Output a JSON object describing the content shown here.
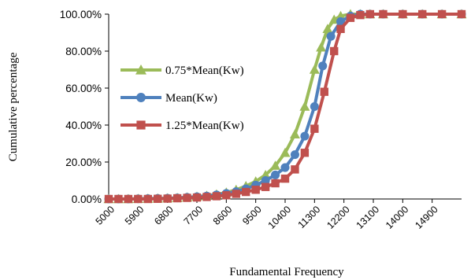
{
  "chart_data": {
    "type": "line",
    "title": "",
    "xlabel": "Fundamental Frequency",
    "ylabel": "Cumulative percentage",
    "xlim": [
      5000,
      15800
    ],
    "ylim": [
      0,
      1
    ],
    "x_ticks": [
      "5000",
      "5900",
      "6800",
      "7700",
      "8600",
      "9500",
      "10400",
      "11300",
      "12200",
      "13100",
      "14000",
      "14900"
    ],
    "y_ticks": [
      "0.00%",
      "20.00%",
      "40.00%",
      "60.00%",
      "80.00%",
      "100.00%"
    ],
    "grid": false,
    "legend_position": "left-inside",
    "series": [
      {
        "name": "0.75*Mean(Kw)",
        "color": "#9BBB59",
        "marker": "triangle",
        "points": [
          [
            5000,
            0.0
          ],
          [
            5300,
            0.0
          ],
          [
            5600,
            0.0
          ],
          [
            5900,
            0.001
          ],
          [
            6200,
            0.002
          ],
          [
            6500,
            0.003
          ],
          [
            6800,
            0.004
          ],
          [
            7100,
            0.006
          ],
          [
            7400,
            0.009
          ],
          [
            7700,
            0.013
          ],
          [
            8000,
            0.018
          ],
          [
            8300,
            0.025
          ],
          [
            8600,
            0.035
          ],
          [
            8900,
            0.05
          ],
          [
            9200,
            0.07
          ],
          [
            9500,
            0.095
          ],
          [
            9800,
            0.13
          ],
          [
            10100,
            0.18
          ],
          [
            10400,
            0.25
          ],
          [
            10700,
            0.35
          ],
          [
            11000,
            0.5
          ],
          [
            11300,
            0.7
          ],
          [
            11500,
            0.82
          ],
          [
            11700,
            0.92
          ],
          [
            11900,
            0.97
          ],
          [
            12100,
            0.99
          ],
          [
            12400,
            1.0
          ],
          [
            12700,
            1.0
          ],
          [
            13000,
            1.0
          ],
          [
            13400,
            1.0
          ],
          [
            14000,
            1.0
          ],
          [
            14600,
            1.0
          ],
          [
            15200,
            1.0
          ],
          [
            15800,
            1.0
          ]
        ]
      },
      {
        "name": "Mean(Kw)",
        "color": "#4F81BD",
        "marker": "circle",
        "points": [
          [
            5000,
            0.0
          ],
          [
            5300,
            0.0
          ],
          [
            5600,
            0.0
          ],
          [
            5900,
            0.001
          ],
          [
            6200,
            0.002
          ],
          [
            6500,
            0.003
          ],
          [
            6800,
            0.004
          ],
          [
            7100,
            0.006
          ],
          [
            7400,
            0.009
          ],
          [
            7700,
            0.012
          ],
          [
            8000,
            0.016
          ],
          [
            8300,
            0.022
          ],
          [
            8600,
            0.03
          ],
          [
            8900,
            0.04
          ],
          [
            9200,
            0.055
          ],
          [
            9500,
            0.075
          ],
          [
            9800,
            0.1
          ],
          [
            10100,
            0.13
          ],
          [
            10400,
            0.17
          ],
          [
            10700,
            0.24
          ],
          [
            11000,
            0.34
          ],
          [
            11300,
            0.5
          ],
          [
            11550,
            0.72
          ],
          [
            11800,
            0.88
          ],
          [
            12100,
            0.96
          ],
          [
            12400,
            0.99
          ],
          [
            12700,
            1.0
          ],
          [
            13000,
            1.0
          ],
          [
            13400,
            1.0
          ],
          [
            14000,
            1.0
          ],
          [
            14600,
            1.0
          ],
          [
            15200,
            1.0
          ],
          [
            15800,
            1.0
          ]
        ]
      },
      {
        "name": "1.25*Mean(Kw)",
        "color": "#C0504D",
        "marker": "square",
        "points": [
          [
            5000,
            0.0
          ],
          [
            5300,
            0.0
          ],
          [
            5600,
            0.0
          ],
          [
            5900,
            0.0
          ],
          [
            6200,
            0.0
          ],
          [
            6500,
            0.001
          ],
          [
            6800,
            0.002
          ],
          [
            7100,
            0.004
          ],
          [
            7400,
            0.006
          ],
          [
            7700,
            0.008
          ],
          [
            8000,
            0.011
          ],
          [
            8300,
            0.015
          ],
          [
            8600,
            0.02
          ],
          [
            8900,
            0.028
          ],
          [
            9200,
            0.038
          ],
          [
            9500,
            0.05
          ],
          [
            9800,
            0.065
          ],
          [
            10100,
            0.085
          ],
          [
            10400,
            0.11
          ],
          [
            10700,
            0.16
          ],
          [
            11000,
            0.25
          ],
          [
            11300,
            0.38
          ],
          [
            11600,
            0.58
          ],
          [
            11900,
            0.8
          ],
          [
            12100,
            0.92
          ],
          [
            12400,
            0.98
          ],
          [
            12700,
            0.995
          ],
          [
            13000,
            1.0
          ],
          [
            13400,
            1.0
          ],
          [
            14000,
            1.0
          ],
          [
            14600,
            1.0
          ],
          [
            15200,
            1.0
          ],
          [
            15800,
            1.0
          ]
        ]
      }
    ]
  }
}
